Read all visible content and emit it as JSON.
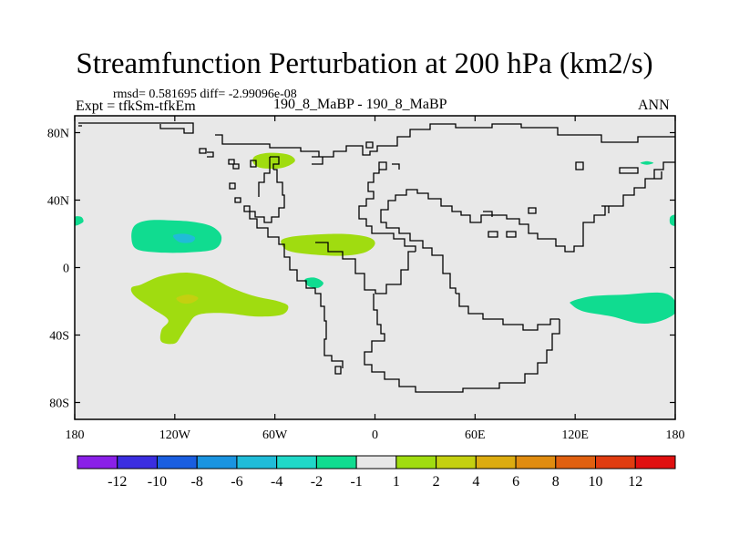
{
  "chart_data": {
    "type": "contour-map",
    "title": "Streamfunction Perturbation at 200 hPa (km2/s)",
    "stats_text": "rmsd= 0.581695 diff= -2.99096e-08",
    "left_label": "Expt = tfkSm-tfkEm",
    "center_label": "190_8_MaBP - 190_8_MaBP",
    "right_label": "ANN",
    "x_ticks": [
      {
        "value": -180,
        "label": "180"
      },
      {
        "value": -120,
        "label": "120W"
      },
      {
        "value": -60,
        "label": "60W"
      },
      {
        "value": 0,
        "label": "0"
      },
      {
        "value": 60,
        "label": "60E"
      },
      {
        "value": 120,
        "label": "120E"
      },
      {
        "value": 180,
        "label": "180"
      }
    ],
    "y_ticks": [
      {
        "value": 80,
        "label": "80N"
      },
      {
        "value": 40,
        "label": "40N"
      },
      {
        "value": 0,
        "label": "0"
      },
      {
        "value": -40,
        "label": "40S"
      },
      {
        "value": -80,
        "label": "80S"
      }
    ],
    "xlim": [
      -180,
      180
    ],
    "ylim": [
      -90,
      90
    ],
    "colorbar": {
      "colors": [
        "#8a20e8",
        "#3b2ee0",
        "#1a5ee0",
        "#1a94e0",
        "#20bcd8",
        "#20d8c8",
        "#10dc90",
        "#e8e8e8",
        "#a0dc10",
        "#c4d010",
        "#dcac10",
        "#e08c10",
        "#e06010",
        "#e03c10",
        "#e01010"
      ],
      "labels": [
        "-12",
        "-10",
        "-8",
        "-6",
        "-4",
        "-2",
        "-1",
        "1",
        "2",
        "4",
        "6",
        "8",
        "10",
        "12"
      ]
    },
    "anomalies": [
      {
        "level": "-1",
        "color": "#10dc90",
        "outline": [
          [
            -144,
            25
          ],
          [
            -136,
            28
          ],
          [
            -122,
            28
          ],
          [
            -108,
            27
          ],
          [
            -97,
            24
          ],
          [
            -92,
            18
          ],
          [
            -96,
            11
          ],
          [
            -112,
            9
          ],
          [
            -130,
            9
          ],
          [
            -143,
            11
          ],
          [
            -146,
            18
          ]
        ]
      },
      {
        "level": "-2",
        "color": "#20bcd8",
        "outline": [
          [
            -121,
            19
          ],
          [
            -114,
            20
          ],
          [
            -108,
            18
          ],
          [
            -110,
            15
          ],
          [
            -117,
            15
          ]
        ]
      },
      {
        "level": "-1",
        "color": "#10dc90",
        "outline": [
          [
            -180,
            30
          ],
          [
            -176,
            30
          ],
          [
            -175,
            27
          ],
          [
            -180,
            25
          ]
        ]
      },
      {
        "level": "-1",
        "color": "#10dc90",
        "outline": [
          [
            -42,
            -7
          ],
          [
            -36,
            -6
          ],
          [
            -31,
            -9
          ],
          [
            -34,
            -12
          ],
          [
            -40,
            -11
          ]
        ]
      },
      {
        "level": "-1",
        "color": "#10dc90",
        "outline": [
          [
            118,
            -20
          ],
          [
            130,
            -17
          ],
          [
            150,
            -16
          ],
          [
            172,
            -15
          ],
          [
            180,
            -20
          ],
          [
            180,
            -27
          ],
          [
            170,
            -32
          ],
          [
            158,
            -33
          ],
          [
            142,
            -29
          ],
          [
            125,
            -26
          ],
          [
            118,
            -22
          ]
        ]
      },
      {
        "level": "-1",
        "color": "#10dc90",
        "outline": [
          [
            159,
            62
          ],
          [
            163,
            63
          ],
          [
            167,
            62
          ],
          [
            163,
            61
          ]
        ]
      },
      {
        "level": "-1",
        "color": "#10dc90",
        "outline": [
          [
            177,
            30
          ],
          [
            180,
            31
          ],
          [
            180,
            25
          ],
          [
            177,
            26
          ]
        ]
      },
      {
        "level": "1",
        "color": "#a0dc10",
        "outline": [
          [
            -140,
            -10
          ],
          [
            -128,
            -5
          ],
          [
            -112,
            -3
          ],
          [
            -98,
            -6
          ],
          [
            -86,
            -12
          ],
          [
            -72,
            -17
          ],
          [
            -58,
            -20
          ],
          [
            -52,
            -23
          ],
          [
            -56,
            -28
          ],
          [
            -72,
            -29
          ],
          [
            -90,
            -27
          ],
          [
            -106,
            -28
          ],
          [
            -112,
            -34
          ],
          [
            -116,
            -40
          ],
          [
            -120,
            -45
          ],
          [
            -128,
            -44
          ],
          [
            -128,
            -37
          ],
          [
            -124,
            -31
          ],
          [
            -134,
            -24
          ],
          [
            -144,
            -17
          ],
          [
            -146,
            -12
          ]
        ]
      },
      {
        "level": "2",
        "color": "#c4d010",
        "outline": [
          [
            -119,
            -18
          ],
          [
            -112,
            -16
          ],
          [
            -106,
            -18
          ],
          [
            -110,
            -21
          ],
          [
            -116,
            -21
          ]
        ]
      },
      {
        "level": "1",
        "color": "#a0dc10",
        "outline": [
          [
            -55,
            17
          ],
          [
            -44,
            19
          ],
          [
            -20,
            20
          ],
          [
            -4,
            18
          ],
          [
            0,
            14
          ],
          [
            -6,
            9
          ],
          [
            -20,
            7
          ],
          [
            -40,
            8
          ],
          [
            -52,
            10
          ],
          [
            -56,
            14
          ]
        ]
      },
      {
        "level": "1",
        "color": "#a0dc10",
        "outline": [
          [
            -72,
            66
          ],
          [
            -64,
            68
          ],
          [
            -52,
            67
          ],
          [
            -48,
            63
          ],
          [
            -56,
            59
          ],
          [
            -68,
            59
          ],
          [
            -73,
            62
          ]
        ]
      }
    ]
  }
}
